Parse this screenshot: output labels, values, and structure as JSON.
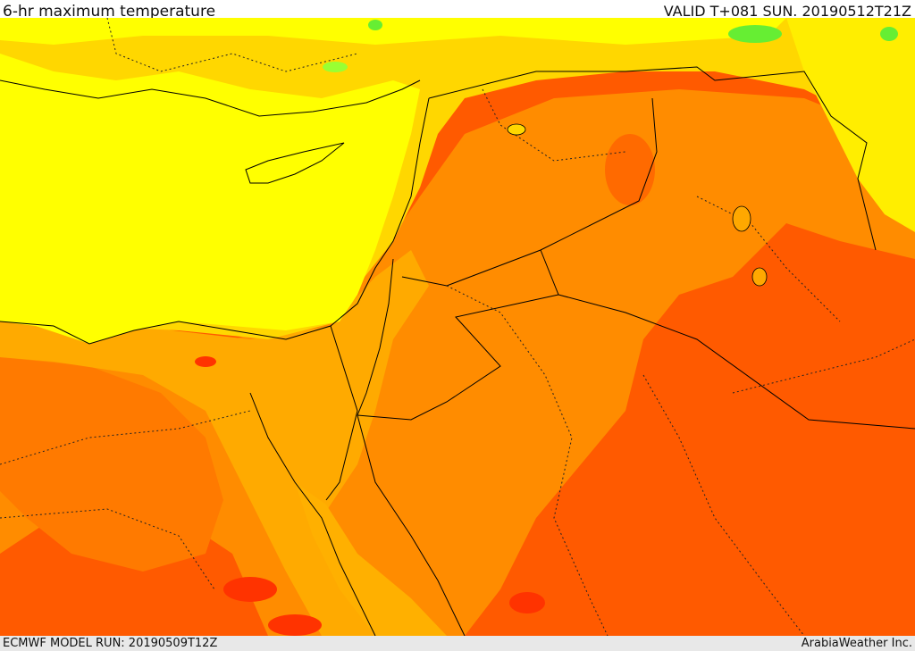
{
  "header": {
    "title": "6-hr maximum temperature",
    "valid": "VALID T+081 SUN. 20190512T21Z"
  },
  "footer": {
    "model_run": "ECMWF MODEL RUN: 20190509T12Z",
    "credit": "ArabiaWeather Inc."
  },
  "colors": {
    "yellow": "#ffff00",
    "gold": "#ffd700",
    "amber": "#ffaa00",
    "orange": "#ff8c00",
    "dark_orange": "#ff5500",
    "red": "#ff3300",
    "green": "#66ee33",
    "border": "#000000"
  }
}
